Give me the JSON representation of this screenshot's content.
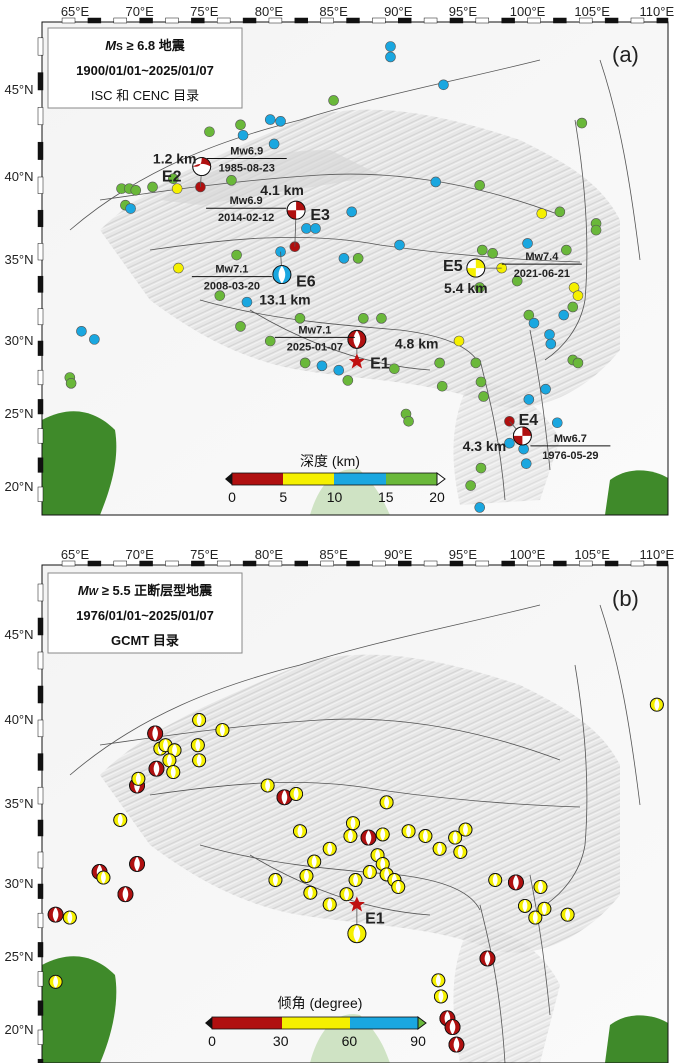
{
  "lon_ticks": [
    "65°E",
    "70°E",
    "75°E",
    "80°E",
    "85°E",
    "90°E",
    "95°E",
    "100°E",
    "105°E",
    "110°E"
  ],
  "lat_ticks": [
    "45°N",
    "40°N",
    "35°N",
    "30°N",
    "25°N",
    "20°N"
  ],
  "colors": {
    "depth_0_5": "#b01010",
    "depth_5_10": "#f5f000",
    "depth_10_15": "#1aa7e0",
    "depth_15_20": "#6ab83a",
    "epicenter": "#c01010",
    "land_green": "#3f8a2a"
  },
  "panel_a": {
    "label": "(a)",
    "legend": {
      "line1_symbol": "M",
      "line1_sub": "S",
      "line1_rest": " ≥ 6.8 地震",
      "line2": "1900/01/01~2025/01/07",
      "line3": "ISC 和 CENC 目录"
    },
    "colorbar": {
      "title": "深度 (km)",
      "ticks": [
        "0",
        "5",
        "10",
        "15",
        "20"
      ]
    },
    "events": [
      {
        "id": "E1",
        "mw": "Mw7.1",
        "date": "2025-01-07",
        "depth": "4.8 km",
        "lon": 86.8,
        "lat": 30.1,
        "epi_lon": 86.8,
        "epi_lat": 28.6,
        "fill": "#b01010",
        "type": "normal"
      },
      {
        "id": "E2",
        "mw": "Mw6.9",
        "date": "1985-08-23",
        "depth": "1.2 km",
        "lon": 74.8,
        "lat": 40.6,
        "epi_lon": 74.7,
        "epi_lat": 39.4,
        "fill": "#b01010",
        "type": "thrust"
      },
      {
        "id": "E3",
        "mw": "Mw6.9",
        "date": "2014-02-12",
        "depth": "4.1 km",
        "lon": 82.1,
        "lat": 38.0,
        "epi_lon": 82.0,
        "epi_lat": 35.8,
        "fill": "#b01010",
        "type": "strike"
      },
      {
        "id": "E4",
        "mw": "Mw6.7",
        "date": "1976-05-29",
        "depth": "4.3 km",
        "lon": 99.6,
        "lat": 23.5,
        "epi_lon": 98.6,
        "epi_lat": 24.5,
        "fill": "#b01010",
        "type": "strike"
      },
      {
        "id": "E5",
        "mw": "Mw7.4",
        "date": "2021-06-21",
        "depth": "5.4 km",
        "lon": 96.0,
        "lat": 34.5,
        "epi_lon": 98.0,
        "epi_lat": 34.5,
        "fill": "#f5f000",
        "type": "strike"
      },
      {
        "id": "E6",
        "mw": "Mw7.1",
        "date": "2008-03-20",
        "depth": "13.1 km",
        "lon": 81.0,
        "lat": 34.1,
        "epi_lon": 80.9,
        "epi_lat": 35.5,
        "fill": "#1aa7e0",
        "type": "normal"
      }
    ],
    "quakes": [
      [
        75.4,
        42.6,
        "g"
      ],
      [
        77.8,
        43.0,
        "g"
      ],
      [
        78.0,
        42.4,
        "b"
      ],
      [
        80.1,
        43.3,
        "b"
      ],
      [
        80.9,
        43.2,
        "b"
      ],
      [
        85.0,
        44.4,
        "g"
      ],
      [
        80.4,
        41.9,
        "b"
      ],
      [
        89.4,
        47.5,
        "b"
      ],
      [
        89.4,
        46.9,
        "b"
      ],
      [
        93.5,
        45.3,
        "b"
      ],
      [
        104.2,
        43.1,
        "g"
      ],
      [
        68.6,
        39.3,
        "g"
      ],
      [
        69.2,
        39.3,
        "g"
      ],
      [
        69.7,
        39.2,
        "g"
      ],
      [
        71.0,
        39.4,
        "g"
      ],
      [
        72.9,
        39.3,
        "y"
      ],
      [
        72.6,
        39.9,
        "g"
      ],
      [
        68.9,
        38.3,
        "g"
      ],
      [
        69.3,
        38.1,
        "b"
      ],
      [
        77.1,
        39.8,
        "g"
      ],
      [
        74.7,
        39.4,
        "r"
      ],
      [
        82.0,
        35.8,
        "r"
      ],
      [
        82.9,
        36.9,
        "b"
      ],
      [
        83.6,
        36.9,
        "b"
      ],
      [
        86.4,
        37.9,
        "b"
      ],
      [
        92.9,
        39.7,
        "b"
      ],
      [
        96.3,
        39.5,
        "g"
      ],
      [
        101.1,
        37.8,
        "y"
      ],
      [
        102.5,
        37.9,
        "g"
      ],
      [
        105.3,
        37.2,
        "g"
      ],
      [
        105.3,
        36.8,
        "g"
      ],
      [
        80.9,
        35.5,
        "b"
      ],
      [
        77.5,
        35.3,
        "g"
      ],
      [
        73.0,
        34.5,
        "y"
      ],
      [
        85.8,
        35.1,
        "b"
      ],
      [
        86.9,
        35.1,
        "g"
      ],
      [
        90.1,
        35.9,
        "b"
      ],
      [
        96.5,
        35.6,
        "g"
      ],
      [
        97.3,
        35.4,
        "g"
      ],
      [
        100.0,
        36.0,
        "b"
      ],
      [
        103.0,
        35.6,
        "g"
      ],
      [
        98.0,
        34.5,
        "y"
      ],
      [
        96.3,
        33.3,
        "g"
      ],
      [
        99.2,
        33.7,
        "g"
      ],
      [
        103.6,
        33.3,
        "y"
      ],
      [
        103.9,
        32.8,
        "y"
      ],
      [
        103.5,
        32.1,
        "g"
      ],
      [
        100.1,
        31.6,
        "g"
      ],
      [
        100.5,
        31.1,
        "b"
      ],
      [
        101.7,
        30.4,
        "b"
      ],
      [
        102.8,
        31.6,
        "b"
      ],
      [
        101.8,
        29.8,
        "b"
      ],
      [
        103.5,
        28.7,
        "g"
      ],
      [
        103.9,
        28.5,
        "g"
      ],
      [
        76.2,
        32.8,
        "g"
      ],
      [
        77.8,
        30.9,
        "g"
      ],
      [
        78.3,
        32.4,
        "b"
      ],
      [
        82.4,
        31.4,
        "g"
      ],
      [
        87.3,
        31.4,
        "g"
      ],
      [
        88.7,
        31.4,
        "g"
      ],
      [
        80.1,
        30.0,
        "g"
      ],
      [
        82.8,
        28.5,
        "g"
      ],
      [
        84.1,
        28.3,
        "b"
      ],
      [
        85.4,
        28.0,
        "b"
      ],
      [
        86.1,
        27.3,
        "g"
      ],
      [
        94.7,
        30.0,
        "y"
      ],
      [
        93.2,
        28.5,
        "g"
      ],
      [
        96.0,
        28.5,
        "g"
      ],
      [
        96.4,
        27.2,
        "g"
      ],
      [
        96.6,
        26.2,
        "g"
      ],
      [
        93.4,
        26.9,
        "g"
      ],
      [
        89.7,
        28.1,
        "g"
      ],
      [
        90.6,
        25.0,
        "g"
      ],
      [
        90.8,
        24.5,
        "g"
      ],
      [
        65.5,
        30.6,
        "b"
      ],
      [
        66.5,
        30.1,
        "b"
      ],
      [
        64.6,
        27.5,
        "g"
      ],
      [
        64.7,
        27.1,
        "g"
      ],
      [
        101.4,
        26.7,
        "b"
      ],
      [
        100.1,
        26.0,
        "b"
      ],
      [
        98.6,
        24.5,
        "r"
      ],
      [
        102.3,
        24.4,
        "b"
      ],
      [
        99.7,
        22.6,
        "b"
      ],
      [
        99.9,
        21.6,
        "b"
      ],
      [
        95.6,
        20.1,
        "g"
      ],
      [
        96.3,
        18.6,
        "b"
      ],
      [
        96.4,
        21.3,
        "g"
      ],
      [
        98.6,
        23.0,
        "b"
      ]
    ]
  },
  "panel_b": {
    "label": "(b)",
    "legend": {
      "line1_symbol": "M",
      "line1_sub": "W",
      "line1_rest": " ≥ 5.5 正断层型地震",
      "line2": "1976/01/01~2025/01/07",
      "line3": "GCMT 目录"
    },
    "colorbar": {
      "title": "倾角 (degree)",
      "ticks": [
        "0",
        "30",
        "60",
        "90"
      ]
    },
    "dip_colors": [
      "#b01010",
      "#f5f000",
      "#1aa7e0",
      "#6ab83a"
    ],
    "epicenter": {
      "id": "E1",
      "lon": 86.8,
      "lat": 28.6,
      "ball_lon": 86.8,
      "ball_lat": 26.6
    },
    "mechanisms": [
      [
        71.2,
        39.2,
        "r"
      ],
      [
        71.6,
        38.3,
        "y"
      ],
      [
        72.0,
        38.5,
        "y"
      ],
      [
        72.7,
        38.2,
        "y"
      ],
      [
        71.3,
        37.1,
        "r"
      ],
      [
        72.3,
        37.6,
        "y"
      ],
      [
        72.6,
        36.9,
        "y"
      ],
      [
        69.8,
        36.1,
        "r"
      ],
      [
        69.9,
        36.5,
        "y"
      ],
      [
        74.6,
        40.0,
        "y"
      ],
      [
        74.5,
        38.5,
        "y"
      ],
      [
        74.6,
        37.6,
        "y"
      ],
      [
        76.4,
        39.4,
        "y"
      ],
      [
        68.5,
        34.0,
        "y"
      ],
      [
        66.9,
        30.75,
        "r"
      ],
      [
        67.2,
        30.4,
        "y"
      ],
      [
        68.9,
        29.3,
        "r"
      ],
      [
        69.8,
        31.25,
        "r"
      ],
      [
        63.5,
        27.9,
        "r"
      ],
      [
        64.6,
        27.7,
        "y"
      ],
      [
        63.5,
        23.3,
        "y"
      ],
      [
        79.9,
        36.1,
        "y"
      ],
      [
        81.2,
        35.4,
        "r"
      ],
      [
        82.1,
        35.6,
        "y"
      ],
      [
        80.5,
        30.25,
        "y"
      ],
      [
        82.4,
        33.3,
        "y"
      ],
      [
        82.9,
        30.5,
        "y"
      ],
      [
        83.2,
        29.4,
        "y"
      ],
      [
        83.5,
        31.4,
        "y"
      ],
      [
        84.7,
        28.6,
        "y"
      ],
      [
        84.7,
        32.2,
        "y"
      ],
      [
        86.3,
        33.0,
        "y"
      ],
      [
        86.5,
        33.8,
        "y"
      ],
      [
        87.7,
        32.9,
        "r"
      ],
      [
        88.4,
        31.8,
        "y"
      ],
      [
        88.8,
        31.25,
        "y"
      ],
      [
        89.1,
        30.6,
        "y"
      ],
      [
        89.7,
        30.25,
        "y"
      ],
      [
        90.0,
        29.8,
        "y"
      ],
      [
        88.8,
        33.1,
        "y"
      ],
      [
        89.1,
        35.1,
        "y"
      ],
      [
        86.7,
        30.25,
        "y"
      ],
      [
        86.0,
        29.3,
        "y"
      ],
      [
        87.8,
        30.75,
        "y"
      ],
      [
        90.8,
        33.3,
        "y"
      ],
      [
        92.1,
        33.0,
        "y"
      ],
      [
        93.2,
        32.2,
        "y"
      ],
      [
        94.4,
        32.9,
        "y"
      ],
      [
        94.8,
        32.0,
        "y"
      ],
      [
        95.2,
        33.4,
        "y"
      ],
      [
        97.5,
        30.25,
        "y"
      ],
      [
        99.1,
        30.1,
        "r"
      ],
      [
        99.8,
        28.5,
        "y"
      ],
      [
        100.6,
        27.7,
        "y"
      ],
      [
        101.3,
        28.3,
        "y"
      ],
      [
        101.0,
        29.8,
        "y"
      ],
      [
        103.1,
        27.9,
        "y"
      ],
      [
        96.9,
        24.9,
        "r"
      ],
      [
        93.1,
        23.4,
        "y"
      ],
      [
        93.3,
        22.3,
        "y"
      ],
      [
        93.8,
        20.8,
        "r"
      ],
      [
        94.2,
        20.2,
        "r"
      ],
      [
        94.5,
        19.0,
        "r"
      ],
      [
        110.0,
        40.9,
        "y"
      ]
    ]
  }
}
